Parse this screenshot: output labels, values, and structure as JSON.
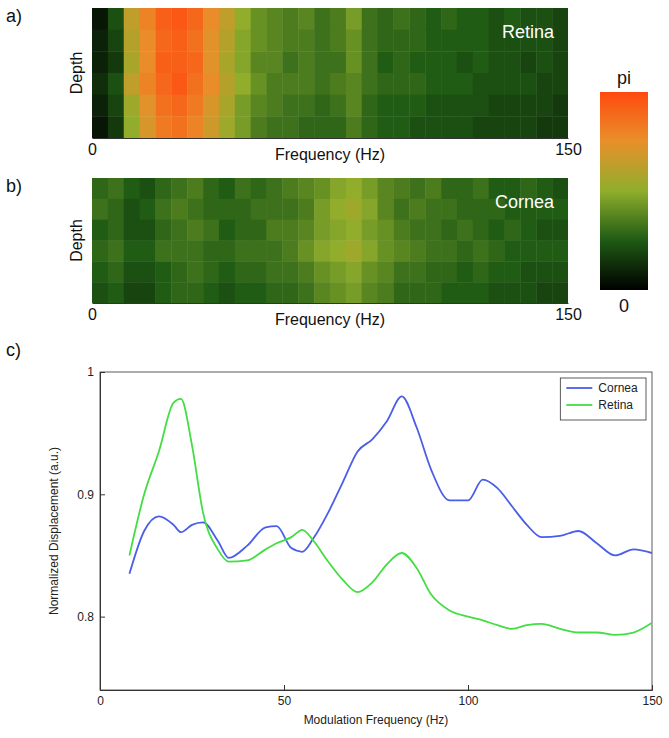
{
  "chart_data": [
    {
      "type": "heatmap",
      "panel": "a)",
      "annotation": "Retina",
      "x_label": "Frequency (Hz)",
      "y_label": "Depth",
      "xlim": [
        0,
        150
      ],
      "xticks": [
        0,
        150
      ],
      "tick_labels": "x",
      "x_bins": [
        0,
        5,
        10,
        15,
        20,
        25,
        30,
        35,
        40,
        45,
        50,
        55,
        60,
        65,
        70,
        75,
        80,
        85,
        90,
        95,
        100,
        105,
        110,
        115,
        120,
        125,
        130,
        135,
        140,
        145,
        150
      ],
      "cells": [
        [
          0.2,
          0.7,
          2.0,
          2.5,
          2.9,
          3.0,
          2.8,
          2.4,
          2.0,
          1.6,
          1.3,
          1.2,
          1.1,
          1.2,
          1.0,
          1.1,
          1.4,
          1.0,
          0.9,
          1.0,
          0.9,
          0.8,
          0.9,
          0.8,
          0.8,
          0.7,
          0.8,
          0.7,
          0.7,
          0.6
        ],
        [
          0.3,
          0.6,
          1.9,
          2.4,
          2.8,
          2.9,
          2.7,
          2.3,
          1.9,
          1.5,
          1.3,
          1.2,
          1.1,
          1.1,
          1.0,
          1.1,
          1.3,
          1.0,
          0.9,
          0.9,
          0.9,
          0.8,
          0.8,
          0.8,
          0.8,
          0.7,
          0.7,
          0.7,
          0.7,
          0.6
        ],
        [
          0.3,
          0.5,
          1.8,
          2.4,
          2.9,
          2.9,
          2.8,
          2.3,
          1.8,
          1.5,
          1.2,
          1.2,
          1.0,
          1.1,
          1.0,
          1.0,
          1.3,
          1.0,
          0.8,
          0.9,
          0.8,
          0.8,
          0.8,
          0.7,
          0.8,
          0.7,
          0.7,
          0.6,
          0.7,
          0.6
        ],
        [
          0.4,
          0.7,
          2.0,
          2.5,
          2.8,
          3.0,
          2.7,
          2.4,
          1.9,
          1.6,
          1.3,
          1.1,
          1.1,
          1.1,
          1.0,
          1.1,
          1.2,
          1.0,
          0.9,
          0.9,
          0.9,
          0.8,
          0.8,
          0.8,
          0.7,
          0.7,
          0.7,
          0.7,
          0.6,
          0.6
        ],
        [
          0.3,
          0.6,
          1.7,
          2.3,
          2.7,
          2.8,
          2.6,
          2.2,
          1.8,
          1.4,
          1.2,
          1.1,
          1.0,
          1.0,
          0.9,
          1.0,
          1.2,
          0.9,
          0.8,
          0.8,
          0.8,
          0.7,
          0.7,
          0.7,
          0.7,
          0.6,
          0.6,
          0.6,
          0.6,
          0.5
        ],
        [
          0.2,
          0.5,
          1.6,
          2.2,
          2.6,
          2.7,
          2.5,
          2.1,
          1.7,
          1.4,
          1.1,
          1.0,
          1.0,
          0.9,
          0.9,
          0.9,
          1.1,
          0.9,
          0.8,
          0.8,
          0.7,
          0.7,
          0.7,
          0.7,
          0.6,
          0.6,
          0.6,
          0.6,
          0.5,
          0.5
        ]
      ],
      "colorbar_range": [
        0,
        3.14159
      ],
      "colorbar_ticks": [
        {
          "value": 3.14159,
          "label": "pi"
        },
        0
      ],
      "colors": [
        "#000000",
        "#1f5a14",
        "#8fae2c",
        "#e8902a",
        "#ff4a10"
      ]
    },
    {
      "type": "heatmap",
      "panel": "b)",
      "annotation": "Cornea",
      "x_label": "Frequency (Hz)",
      "y_label": "Depth",
      "xlim": [
        0,
        150
      ],
      "xticks": [
        0,
        150
      ],
      "tick_labels": "x",
      "x_bins": [
        0,
        5,
        10,
        15,
        20,
        25,
        30,
        35,
        40,
        45,
        50,
        55,
        60,
        65,
        70,
        75,
        80,
        85,
        90,
        95,
        100,
        105,
        110,
        115,
        120,
        125,
        130,
        135,
        140,
        145,
        150
      ],
      "cells": [
        [
          0.9,
          1.0,
          0.8,
          0.7,
          0.9,
          1.0,
          1.1,
          0.9,
          0.8,
          1.0,
          0.9,
          1.0,
          1.1,
          1.2,
          1.3,
          1.5,
          1.6,
          1.4,
          1.2,
          1.1,
          1.0,
          1.1,
          0.9,
          0.9,
          1.0,
          0.8,
          0.8,
          0.9,
          0.8,
          0.7
        ],
        [
          1.0,
          0.9,
          0.7,
          0.8,
          1.0,
          1.1,
          1.0,
          0.9,
          0.9,
          0.9,
          1.0,
          1.0,
          1.0,
          1.1,
          1.4,
          1.6,
          1.7,
          1.5,
          1.2,
          1.0,
          1.1,
          1.0,
          1.0,
          0.9,
          0.9,
          0.9,
          0.8,
          0.8,
          0.8,
          0.8
        ],
        [
          0.8,
          0.9,
          0.7,
          0.7,
          0.9,
          1.0,
          1.1,
          1.0,
          0.8,
          0.9,
          0.9,
          1.1,
          1.1,
          1.2,
          1.4,
          1.5,
          1.6,
          1.4,
          1.3,
          1.1,
          1.0,
          1.0,
          0.9,
          1.0,
          0.9,
          0.8,
          0.9,
          0.8,
          0.7,
          0.7
        ],
        [
          0.9,
          1.0,
          0.8,
          0.8,
          1.0,
          1.0,
          1.0,
          0.9,
          0.9,
          1.0,
          1.0,
          1.0,
          1.1,
          1.3,
          1.5,
          1.6,
          1.7,
          1.5,
          1.3,
          1.2,
          1.1,
          1.0,
          1.0,
          0.9,
          1.0,
          0.9,
          0.8,
          0.8,
          0.8,
          0.8
        ],
        [
          0.8,
          0.9,
          0.7,
          0.7,
          0.8,
          0.9,
          1.0,
          0.9,
          0.8,
          0.9,
          0.9,
          1.0,
          1.0,
          1.1,
          1.3,
          1.4,
          1.5,
          1.3,
          1.2,
          1.0,
          1.0,
          0.9,
          0.9,
          0.8,
          0.9,
          0.8,
          0.8,
          0.7,
          0.7,
          0.7
        ],
        [
          0.7,
          0.8,
          0.6,
          0.6,
          0.8,
          0.9,
          0.9,
          0.8,
          0.7,
          0.8,
          0.8,
          0.9,
          0.9,
          1.0,
          1.2,
          1.3,
          1.4,
          1.2,
          1.1,
          0.9,
          0.9,
          0.9,
          0.8,
          0.8,
          0.8,
          0.7,
          0.7,
          0.7,
          0.6,
          0.6
        ]
      ]
    },
    {
      "type": "line",
      "panel": "c)",
      "x_label": "Modulation Frequency (Hz)",
      "y_label": "Normalized Displacement (a.u.)",
      "xlim": [
        0,
        150
      ],
      "xticks": [
        0,
        50,
        100,
        150
      ],
      "ylim": [
        0.74,
        1
      ],
      "yticks": [
        0.8,
        0.9,
        1
      ],
      "legend": "upper right",
      "x": [
        8,
        12,
        16,
        20,
        22,
        25,
        28,
        32,
        35,
        40,
        45,
        48,
        52,
        55,
        58,
        62,
        66,
        70,
        74,
        78,
        82,
        86,
        90,
        95,
        100,
        104,
        108,
        112,
        116,
        120,
        125,
        130,
        135,
        140,
        145,
        150
      ],
      "series": [
        {
          "name": "Cornea",
          "color": "#4a5ee8",
          "values": [
            0.835,
            0.87,
            0.882,
            0.875,
            0.869,
            0.875,
            0.877,
            0.862,
            0.848,
            0.858,
            0.873,
            0.874,
            0.856,
            0.853,
            0.864,
            0.885,
            0.91,
            0.935,
            0.945,
            0.96,
            0.98,
            0.955,
            0.92,
            0.895,
            0.895,
            0.912,
            0.905,
            0.89,
            0.875,
            0.865,
            0.866,
            0.87,
            0.86,
            0.85,
            0.855,
            0.852
          ]
        },
        {
          "name": "Retina",
          "color": "#44dd44",
          "values": [
            0.85,
            0.9,
            0.935,
            0.975,
            0.978,
            0.94,
            0.885,
            0.855,
            0.845,
            0.846,
            0.855,
            0.86,
            0.865,
            0.871,
            0.862,
            0.845,
            0.83,
            0.82,
            0.828,
            0.843,
            0.852,
            0.84,
            0.818,
            0.805,
            0.8,
            0.797,
            0.793,
            0.79,
            0.793,
            0.794,
            0.79,
            0.787,
            0.787,
            0.785,
            0.787,
            0.795
          ]
        }
      ]
    }
  ]
}
